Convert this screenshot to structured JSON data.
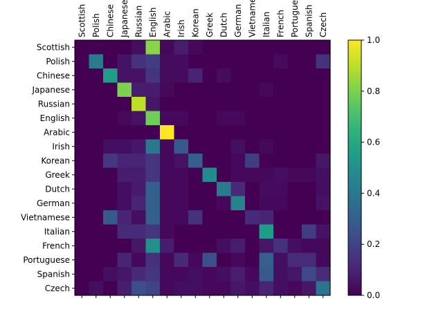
{
  "chart_data": {
    "type": "heatmap",
    "title": "",
    "xlabel": "",
    "ylabel": "",
    "colormap": "viridis",
    "x_categories": [
      "Scottish",
      "Polish",
      "Chinese",
      "Japanese",
      "Russian",
      "English",
      "Arabic",
      "Irish",
      "Korean",
      "Greek",
      "Dutch",
      "German",
      "Vietnamese",
      "Italian",
      "French",
      "Portuguese",
      "Spanish",
      "Czech"
    ],
    "x_tick_labels": [
      "Scottish",
      "Polish",
      "Chinese",
      "Japanese",
      "Russian",
      "English",
      "Arabic",
      "Irish",
      "Korean",
      "Greek",
      "Dutch",
      "German",
      "Vietnamese",
      "Italian",
      "French",
      "Portuguese",
      "Spanish",
      "Czech"
    ],
    "y_categories": [
      "Scottish",
      "Polish",
      "Chinese",
      "Japanese",
      "Russian",
      "English",
      "Arabic",
      "Irish",
      "Korean",
      "Greek",
      "Dutch",
      "German",
      "Vietnamese",
      "Italian",
      "French",
      "Portuguese",
      "Spanish",
      "Czech"
    ],
    "values": [
      [
        0.0,
        0.0,
        0.0,
        0.0,
        0.04,
        0.82,
        0.02,
        0.08,
        0.02,
        0.0,
        0.0,
        0.0,
        0.0,
        0.0,
        0.0,
        0.0,
        0.0,
        0.0
      ],
      [
        0.0,
        0.42,
        0.0,
        0.05,
        0.14,
        0.18,
        0.03,
        0.03,
        0.0,
        0.0,
        0.0,
        0.0,
        0.0,
        0.0,
        0.03,
        0.0,
        0.0,
        0.14
      ],
      [
        0.0,
        0.0,
        0.55,
        0.05,
        0.05,
        0.15,
        0.03,
        0.03,
        0.1,
        0.0,
        0.03,
        0.0,
        0.0,
        0.0,
        0.0,
        0.0,
        0.0,
        0.0
      ],
      [
        0.0,
        0.0,
        0.0,
        0.8,
        0.08,
        0.08,
        0.02,
        0.0,
        0.0,
        0.0,
        0.0,
        0.0,
        0.0,
        0.02,
        0.0,
        0.0,
        0.0,
        0.0
      ],
      [
        0.0,
        0.0,
        0.0,
        0.0,
        0.9,
        0.06,
        0.0,
        0.0,
        0.0,
        0.0,
        0.0,
        0.0,
        0.0,
        0.0,
        0.0,
        0.0,
        0.0,
        0.0
      ],
      [
        0.0,
        0.0,
        0.0,
        0.02,
        0.05,
        0.78,
        0.02,
        0.02,
        0.0,
        0.0,
        0.02,
        0.02,
        0.0,
        0.0,
        0.0,
        0.0,
        0.0,
        0.0
      ],
      [
        0.0,
        0.0,
        0.0,
        0.0,
        0.0,
        0.0,
        1.0,
        0.0,
        0.0,
        0.0,
        0.0,
        0.0,
        0.0,
        0.0,
        0.0,
        0.0,
        0.0,
        0.0
      ],
      [
        0.0,
        0.0,
        0.04,
        0.04,
        0.06,
        0.4,
        0.02,
        0.28,
        0.0,
        0.0,
        0.0,
        0.04,
        0.0,
        0.02,
        0.0,
        0.0,
        0.0,
        0.0
      ],
      [
        0.0,
        0.0,
        0.16,
        0.1,
        0.1,
        0.16,
        0.02,
        0.05,
        0.3,
        0.0,
        0.0,
        0.02,
        0.18,
        0.0,
        0.0,
        0.0,
        0.0,
        0.06
      ],
      [
        0.0,
        0.0,
        0.0,
        0.08,
        0.08,
        0.16,
        0.02,
        0.02,
        0.0,
        0.48,
        0.0,
        0.02,
        0.02,
        0.02,
        0.04,
        0.02,
        0.02,
        0.04
      ],
      [
        0.0,
        0.0,
        0.0,
        0.04,
        0.07,
        0.3,
        0.02,
        0.02,
        0.0,
        0.0,
        0.42,
        0.12,
        0.0,
        0.03,
        0.03,
        0.0,
        0.0,
        0.04
      ],
      [
        0.0,
        0.0,
        0.0,
        0.04,
        0.1,
        0.3,
        0.02,
        0.02,
        0.0,
        0.0,
        0.02,
        0.45,
        0.0,
        0.02,
        0.02,
        0.0,
        0.0,
        0.05
      ],
      [
        0.0,
        0.0,
        0.28,
        0.1,
        0.04,
        0.3,
        0.02,
        0.02,
        0.14,
        0.0,
        0.0,
        0.0,
        0.12,
        0.1,
        0.0,
        0.0,
        0.0,
        0.0
      ],
      [
        0.0,
        0.0,
        0.0,
        0.12,
        0.12,
        0.16,
        0.02,
        0.0,
        0.0,
        0.0,
        0.0,
        0.0,
        0.0,
        0.55,
        0.0,
        0.0,
        0.18,
        0.05
      ],
      [
        0.0,
        0.0,
        0.0,
        0.0,
        0.06,
        0.5,
        0.08,
        0.0,
        0.0,
        0.0,
        0.04,
        0.08,
        0.0,
        0.06,
        0.14,
        0.04,
        0.02,
        0.02
      ],
      [
        0.0,
        0.0,
        0.0,
        0.1,
        0.02,
        0.14,
        0.02,
        0.12,
        0.02,
        0.24,
        0.0,
        0.02,
        0.0,
        0.3,
        0.04,
        0.12,
        0.12,
        0.02
      ],
      [
        0.0,
        0.0,
        0.04,
        0.06,
        0.12,
        0.16,
        0.02,
        0.02,
        0.04,
        0.02,
        0.04,
        0.08,
        0.02,
        0.28,
        0.04,
        0.06,
        0.22,
        0.12
      ],
      [
        0.0,
        0.04,
        0.0,
        0.08,
        0.24,
        0.2,
        0.02,
        0.04,
        0.04,
        0.02,
        0.02,
        0.06,
        0.04,
        0.1,
        0.04,
        0.02,
        0.06,
        0.38
      ]
    ],
    "colorbar": {
      "min": 0.0,
      "max": 1.0,
      "ticks": [
        0.0,
        0.2,
        0.4,
        0.6,
        0.8,
        1.0
      ],
      "tick_labels": [
        "0.0",
        "0.2",
        "0.4",
        "0.6",
        "0.8",
        "1.0"
      ]
    },
    "grid": false,
    "legend": "none"
  }
}
